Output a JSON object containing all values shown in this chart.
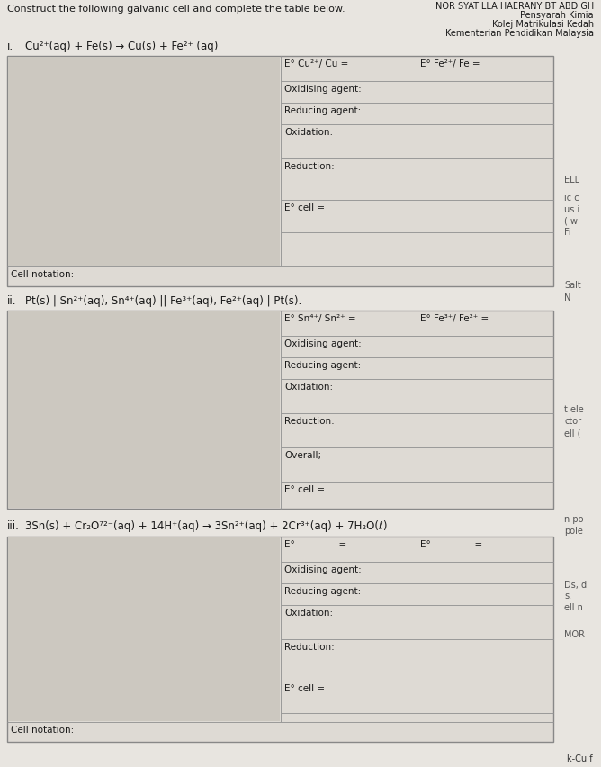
{
  "title_name": "NOR SYATILLA HAERANY BT ABD GH",
  "title_sub1": "Pensyarah Kimia",
  "title_sub2": "Kolej Matrikulasi Kedah",
  "title_sub3": "Kementerian Pendidikan Malaysia",
  "main_instruction": "Construct the following galvanic cell and complete the table below.",
  "section_i_label": "i.",
  "section_i_eq": "Cu²⁺(aq) + Fe(s) → Cu(s) + Fe²⁺ (aq)",
  "section_i_row1_col1": "E° Cu²⁺/ Cu =",
  "section_i_row1_col2": "E° Fe²⁺/ Fe =",
  "cell_notation_label": "Cell notation:",
  "section_ii_label": "ii.",
  "section_ii_eq": "Pt(s) | Sn²⁺(aq), Sn⁴⁺(aq) || Fe³⁺(aq), Fe²⁺(aq) | Pt(s).",
  "section_ii_row1_col1": "E° Sn⁴⁺/ Sn²⁺ =",
  "section_ii_row1_col2": "E° Fe³⁺/ Fe²⁺ =",
  "section_iii_label": "iii.",
  "section_iii_eq": "3Sn(s) + Cr₂O⁷²⁻(aq) + 14H⁺(aq) → 3Sn²⁺(aq) + 2Cr³⁺(aq) + 7H₂O(ℓ)",
  "bg_color": "#e8e5e0",
  "table_bg": "#dedad4",
  "img_area_bg": "#ccc8c0",
  "line_color": "#aaaaaa",
  "text_color": "#1a1a1a",
  "right_margin_texts_1": [
    [
      "ELL",
      195
    ],
    [
      "ic c",
      215
    ],
    [
      "us i",
      228
    ],
    [
      "( w",
      240
    ],
    [
      "Fi",
      253
    ]
  ],
  "right_margin_texts_2": [
    [
      "Salt",
      312
    ],
    [
      "N",
      326
    ]
  ],
  "right_margin_texts_3": [
    [
      "t ele",
      450
    ],
    [
      "ctor",
      463
    ],
    [
      "ell (",
      476
    ]
  ],
  "right_margin_texts_4": [
    [
      "n po",
      572
    ],
    [
      "pole",
      585
    ]
  ],
  "right_margin_texts_5": [
    [
      "Ds, d",
      645
    ],
    [
      "s.",
      657
    ],
    [
      "ell n",
      670
    ],
    [
      "MOR",
      700
    ]
  ]
}
